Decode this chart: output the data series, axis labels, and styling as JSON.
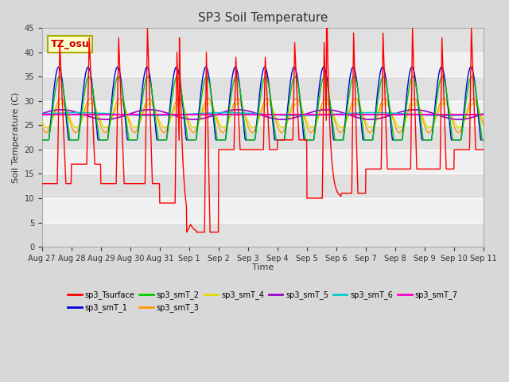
{
  "title": "SP3 Soil Temperature",
  "xlabel": "Time",
  "ylabel": "Soil Temperature (C)",
  "ylim": [
    0,
    45
  ],
  "yticks": [
    0,
    5,
    10,
    15,
    20,
    25,
    30,
    35,
    40,
    45
  ],
  "annotation_text": "TZ_osu",
  "annotation_color": "#cc0000",
  "annotation_bg": "#ffffcc",
  "annotation_border": "#aaaa00",
  "series_colors": {
    "sp3_Tsurface": "#ff0000",
    "sp3_smT_1": "#0000dd",
    "sp3_smT_2": "#00cc00",
    "sp3_smT_3": "#ff9900",
    "sp3_smT_4": "#dddd00",
    "sp3_smT_5": "#9900cc",
    "sp3_smT_6": "#00cccc",
    "sp3_smT_7": "#ff00cc"
  },
  "bg_color": "#d8d8d8",
  "plot_bg_light": "#f0f0f0",
  "plot_bg_dark": "#e0e0e0",
  "grid_color": "#ffffff",
  "tick_labels": [
    "Aug 27",
    "Aug 28",
    "Aug 29",
    "Aug 30",
    "Aug 31",
    "Sep 1",
    "Sep 2",
    "Sep 3",
    "Sep 4",
    "Sep 5",
    "Sep 6",
    "Sep 7",
    "Sep 8",
    "Sep 9",
    "Sep 10",
    "Sep 11"
  ],
  "legend_entries": [
    "sp3_Tsurface",
    "sp3_smT_1",
    "sp3_smT_2",
    "sp3_smT_3",
    "sp3_smT_4",
    "sp3_smT_5",
    "sp3_smT_6",
    "sp3_smT_7"
  ]
}
